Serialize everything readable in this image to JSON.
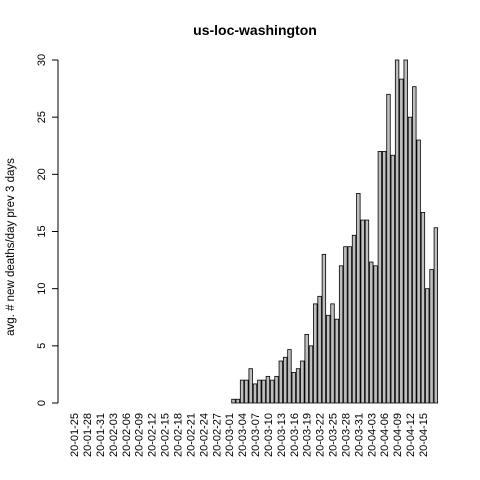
{
  "chart_data": {
    "type": "bar",
    "title": "us-loc-washington",
    "xlabel": "",
    "ylabel": "avg. # new deaths/day prev  3  days",
    "ylim": [
      0,
      30
    ],
    "yticks": [
      0,
      5,
      10,
      15,
      20,
      25,
      30
    ],
    "start_date": "2020-01-25",
    "tick_labels": [
      "20-01-25",
      "20-01-28",
      "20-01-31",
      "20-02-03",
      "20-02-06",
      "20-02-09",
      "20-02-12",
      "20-02-15",
      "20-02-18",
      "20-02-21",
      "20-02-24",
      "20-02-27",
      "20-03-01",
      "20-03-04",
      "20-03-07",
      "20-03-10",
      "20-03-13",
      "20-03-16",
      "20-03-19",
      "20-03-22",
      "20-03-25",
      "20-03-28",
      "20-03-31",
      "20-04-03",
      "20-04-06",
      "20-04-09",
      "20-04-12",
      "20-04-15"
    ],
    "series": [
      {
        "name": "",
        "values": [
          0,
          0,
          0,
          0,
          0,
          0,
          0,
          0,
          0,
          0,
          0,
          0,
          0,
          0,
          0,
          0,
          0,
          0,
          0,
          0,
          0,
          0,
          0,
          0,
          0,
          0,
          0,
          0,
          0,
          0,
          0,
          0,
          0,
          0,
          0,
          0,
          0,
          0.33,
          0.33,
          2,
          2,
          3,
          1.67,
          2,
          2,
          2.33,
          2,
          2.33,
          3.67,
          4,
          4.67,
          2.67,
          3,
          3.67,
          6,
          5,
          8.67,
          9.33,
          13,
          7.67,
          8.67,
          7.33,
          12,
          13.67,
          13.67,
          14.67,
          18.33,
          16,
          16,
          12.33,
          12,
          22,
          22,
          27,
          21.67,
          30,
          28.33,
          30,
          25,
          27.67,
          23,
          16.67,
          10,
          11.67,
          15.33
        ]
      }
    ]
  }
}
